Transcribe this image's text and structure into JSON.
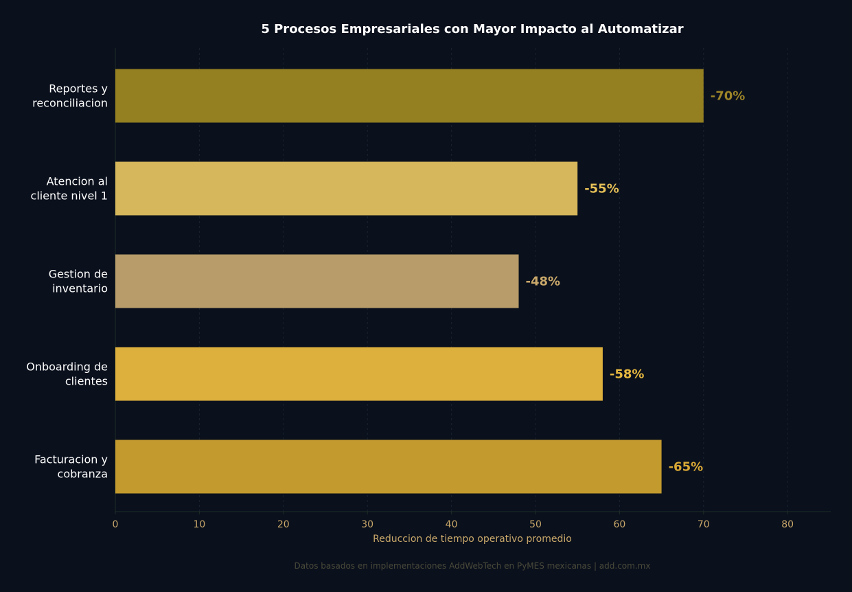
{
  "chart_data": {
    "type": "bar",
    "orientation": "horizontal",
    "title": "5 Procesos Empresariales con Mayor Impacto al Automatizar",
    "xlabel": "Reduccion de tiempo operativo promedio",
    "ylabel": "",
    "xlim": [
      0,
      85
    ],
    "xticks": [
      0,
      10,
      20,
      30,
      40,
      50,
      60,
      70,
      80
    ],
    "grid": "vertical dashed",
    "categories": [
      [
        "Reportes y",
        "reconciliacion"
      ],
      [
        "Atencion al",
        "cliente nivel 1"
      ],
      [
        "Gestion de",
        "inventario"
      ],
      [
        "Onboarding de",
        "clientes"
      ],
      [
        "Facturacion y",
        "cobranza"
      ]
    ],
    "values": [
      70,
      55,
      48,
      58,
      65
    ],
    "data_labels": [
      "-70%",
      "-55%",
      "-48%",
      "-58%",
      "-65%"
    ],
    "colors": [
      "#947f21",
      "#d6b75b",
      "#b89d6a",
      "#ddaf3c",
      "#c39a2e"
    ],
    "label_colors": [
      "#9c8428",
      "#e6c057",
      "#c9a86a",
      "#e6b840",
      "#d9a835"
    ],
    "footnote": "Datos basados en implementaciones AddWebTech en PyMES mexicanas | add.com.mx"
  }
}
